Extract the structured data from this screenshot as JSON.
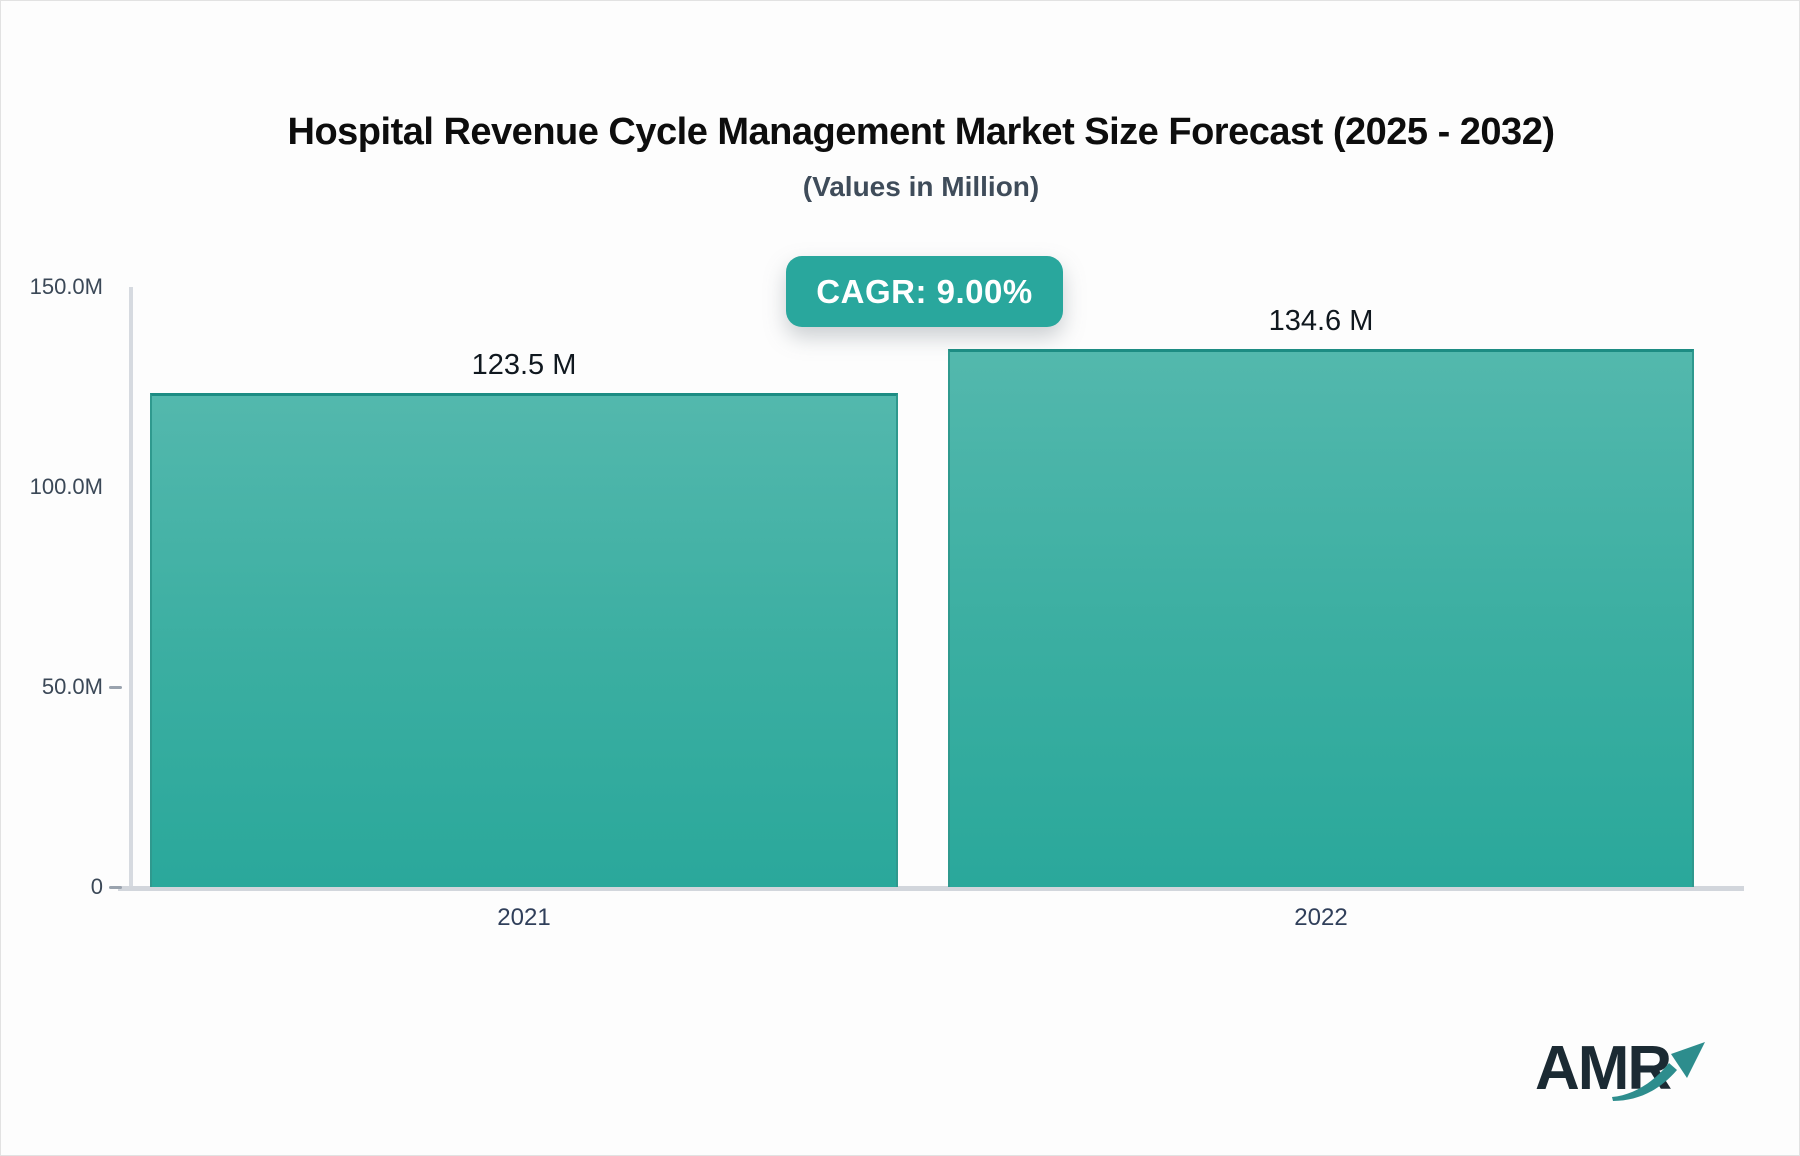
{
  "header": {
    "title": "Hospital Revenue Cycle Management Market Size Forecast (2025 - 2032)",
    "subtitle": "(Values in Million)",
    "cagr_badge": "CAGR: 9.00%"
  },
  "chart_data": {
    "type": "bar",
    "title": "Hospital Revenue Cycle Management Market Size Forecast (2025 - 2032)",
    "subtitle": "(Values in Million)",
    "units": "Million",
    "cagr_percent": "9.00%",
    "categories": [
      "2021",
      "2022"
    ],
    "values": [
      123.5,
      134.6
    ],
    "value_labels": [
      "123.5 M",
      "134.6 M"
    ],
    "xlabel": "",
    "ylabel": "",
    "ylim": [
      0,
      150
    ],
    "yticks": [
      {
        "label": "150.0M",
        "value": 150,
        "tick_mark": false
      },
      {
        "label": "100.0M",
        "value": 100,
        "tick_mark": false
      },
      {
        "label": "50.0M",
        "value": 50,
        "tick_mark": true
      },
      {
        "label": "0",
        "value": 0,
        "tick_mark": true
      }
    ],
    "grid": false,
    "legend": false,
    "bar_color_top": "#53b8ad",
    "bar_color_bottom": "#2aa89b",
    "bar_border_color": "#1d8c83"
  },
  "branding": {
    "logo_text": "AMR",
    "logo_color": "#1b2a33",
    "arrow_color": "#2d8d8d"
  },
  "colors": {
    "badge_bg": "#29a79d",
    "badge_text": "#ffffff",
    "axis_line": "#d6dae0",
    "tick_text": "#3b4857",
    "category_text": "#303f5a",
    "value_text": "#10181f",
    "background": "#fdfdfd"
  }
}
